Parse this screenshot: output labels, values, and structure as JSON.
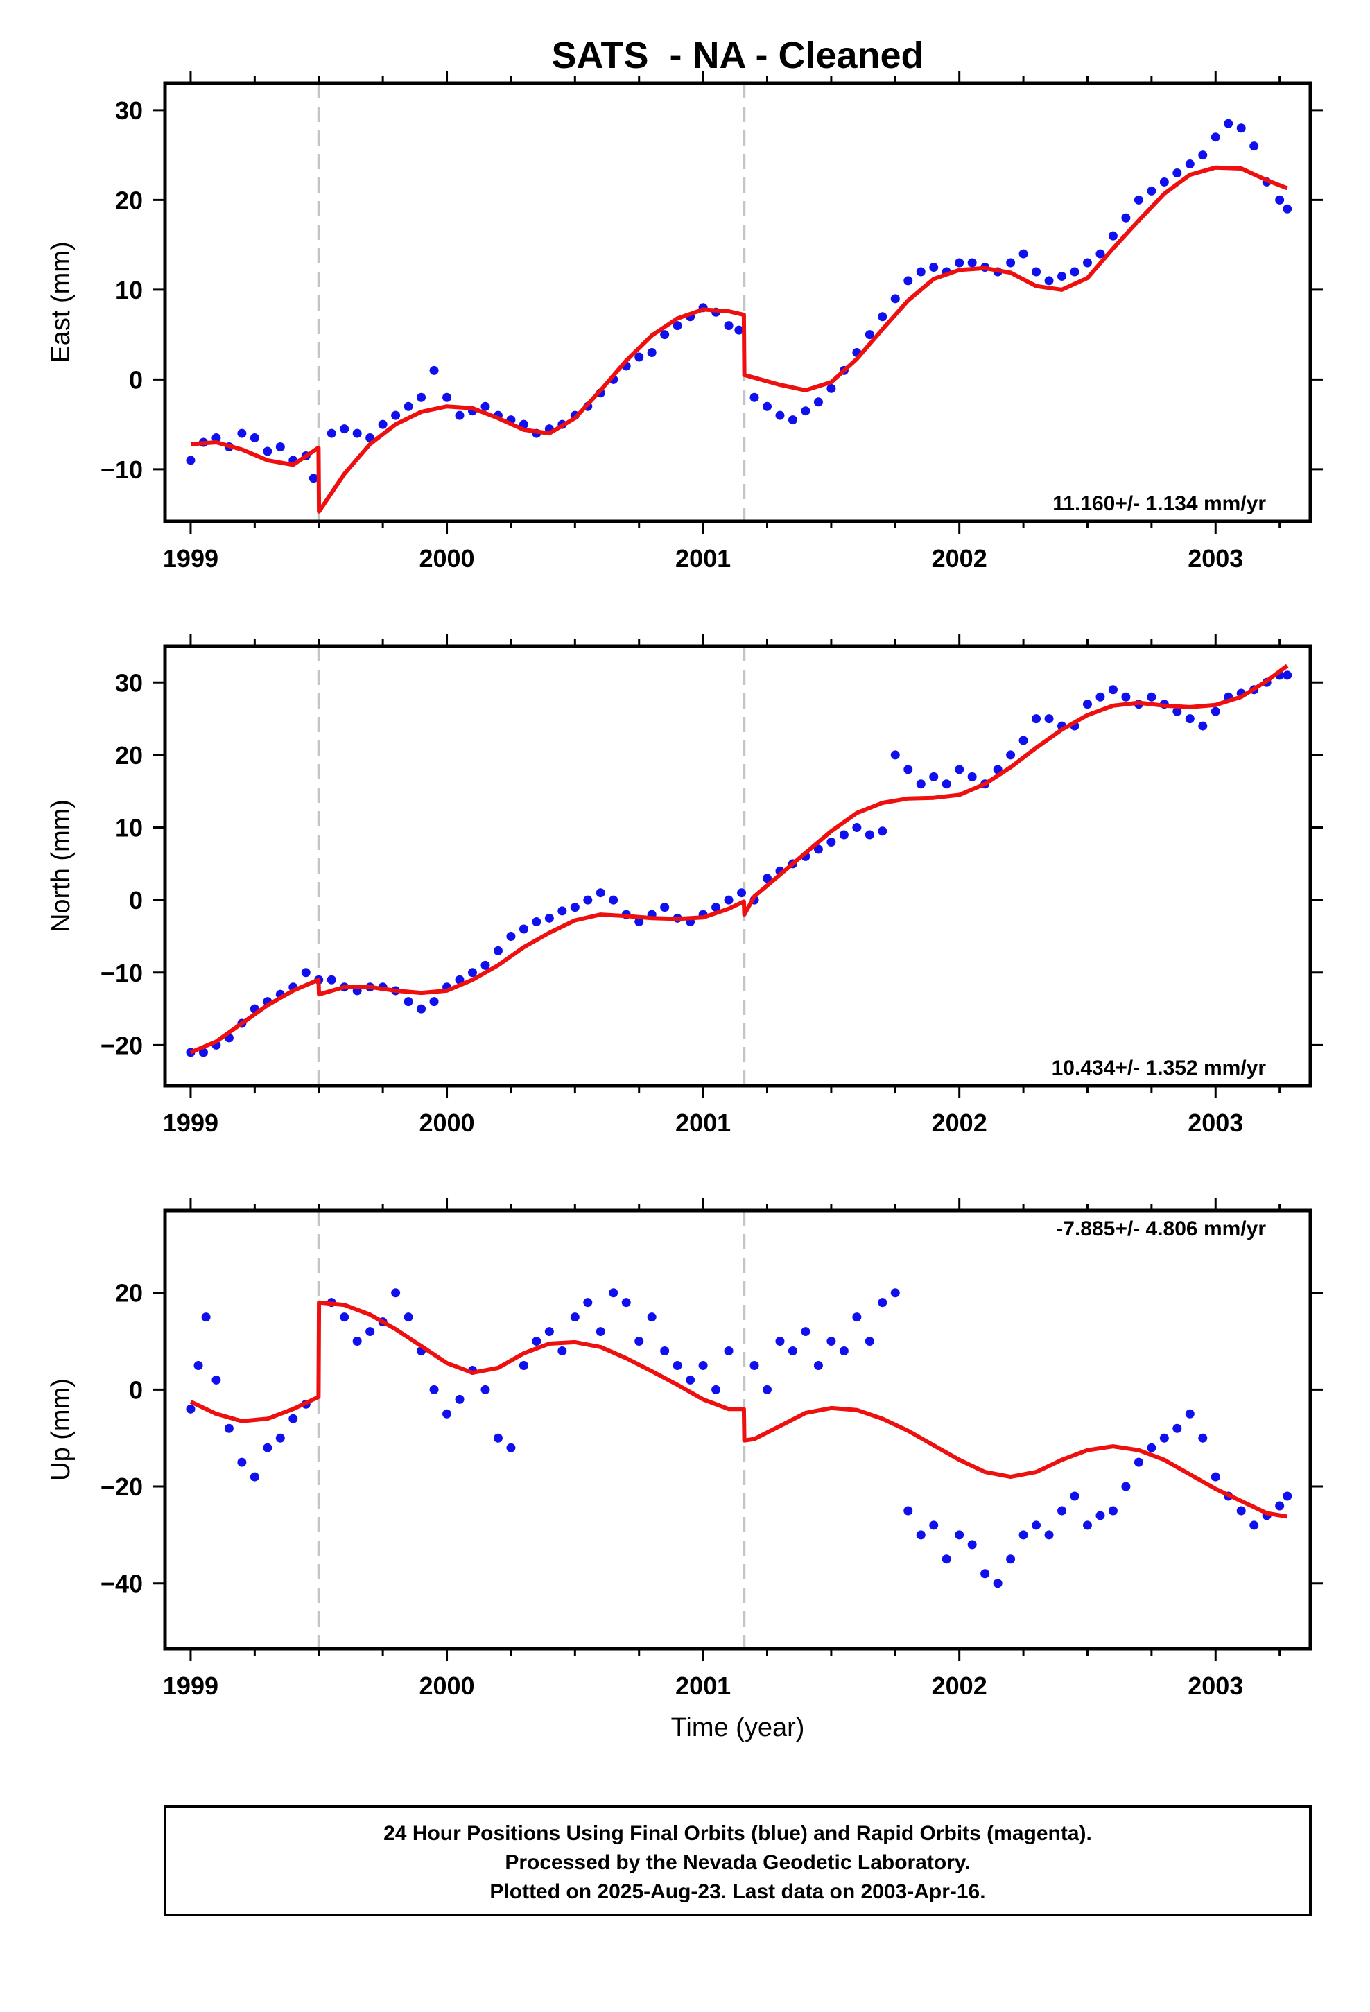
{
  "page": {
    "title": "SATS  - NA - Cleaned",
    "xlabel": "Time (year)",
    "footer": [
      "24 Hour Positions Using Final Orbits (blue) and Rapid Orbits (magenta).",
      "Processed by the Nevada Geodetic Laboratory.",
      "Plotted on 2025-Aug-23. Last data on 2003-Apr-16."
    ],
    "colors": {
      "points": "#1010ee",
      "model": "#ee0f0f",
      "offset_lines": "#c4c4c4",
      "frame": "#000000"
    }
  },
  "chart_data": [
    {
      "type": "scatter",
      "ylabel": "East (mm)",
      "rate_label": "11.160+/- 1.134 mm/yr",
      "xlim": [
        1998.9,
        2003.37
      ],
      "ylim": [
        -15.8,
        33
      ],
      "x_ticks": [
        1999,
        2000,
        2001,
        2002,
        2003
      ],
      "y_ticks": [
        -10,
        0,
        10,
        20,
        30
      ],
      "offset_epochs": [
        1999.5,
        2001.16
      ],
      "series": [
        {
          "role": "data",
          "x": [
            1999.0,
            1999.05,
            1999.1,
            1999.15,
            1999.2,
            1999.25,
            1999.3,
            1999.35,
            1999.4,
            1999.45,
            1999.48,
            1999.55,
            1999.6,
            1999.65,
            1999.7,
            1999.75,
            1999.8,
            1999.85,
            1999.9,
            1999.95,
            2000.0,
            2000.05,
            2000.1,
            2000.15,
            2000.2,
            2000.25,
            2000.3,
            2000.35,
            2000.4,
            2000.45,
            2000.5,
            2000.55,
            2000.6,
            2000.65,
            2000.7,
            2000.75,
            2000.8,
            2000.85,
            2000.9,
            2000.95,
            2001.0,
            2001.05,
            2001.1,
            2001.14,
            2001.2,
            2001.25,
            2001.3,
            2001.35,
            2001.4,
            2001.45,
            2001.5,
            2001.55,
            2001.6,
            2001.65,
            2001.7,
            2001.75,
            2001.8,
            2001.85,
            2001.9,
            2001.95,
            2002.0,
            2002.05,
            2002.1,
            2002.15,
            2002.2,
            2002.25,
            2002.3,
            2002.35,
            2002.4,
            2002.45,
            2002.5,
            2002.55,
            2002.6,
            2002.65,
            2002.7,
            2002.75,
            2002.8,
            2002.85,
            2002.9,
            2002.95,
            2003.0,
            2003.05,
            2003.1,
            2003.15,
            2003.2,
            2003.25,
            2003.28
          ],
          "y": [
            -9,
            -7,
            -6.5,
            -7.5,
            -6,
            -6.5,
            -8,
            -7.5,
            -9,
            -8.5,
            -11,
            -6,
            -5.5,
            -6,
            -6.5,
            -5,
            -4,
            -3,
            -2,
            1,
            -2,
            -4,
            -3.5,
            -3,
            -4,
            -4.5,
            -5,
            -6,
            -5.5,
            -5,
            -4,
            -3,
            -1.5,
            0,
            1.5,
            2.5,
            3,
            5,
            6,
            7,
            8,
            7.5,
            6,
            5.5,
            -2,
            -3,
            -4,
            -4.5,
            -3.5,
            -2.5,
            -1,
            1,
            3,
            5,
            7,
            9,
            11,
            12,
            12.5,
            12,
            13,
            13,
            12.5,
            12,
            13,
            14,
            12,
            11,
            11.5,
            12,
            13,
            14,
            16,
            18,
            20,
            21,
            22,
            23,
            24,
            25,
            27,
            28.5,
            28,
            26,
            22,
            20,
            19
          ]
        },
        {
          "role": "model",
          "x": [
            1999.0,
            1999.1,
            1999.2,
            1999.3,
            1999.4,
            1999.499,
            1999.501,
            1999.6,
            1999.7,
            1999.8,
            1999.9,
            2000.0,
            2000.1,
            2000.2,
            2000.3,
            2000.4,
            2000.5,
            2000.6,
            2000.7,
            2000.8,
            2000.9,
            2001.0,
            2001.1,
            2001.159,
            2001.161,
            2001.2,
            2001.3,
            2001.4,
            2001.5,
            2001.6,
            2001.7,
            2001.8,
            2001.9,
            2002.0,
            2002.1,
            2002.2,
            2002.3,
            2002.4,
            2002.5,
            2002.6,
            2002.7,
            2002.8,
            2002.9,
            2003.0,
            2003.1,
            2003.2,
            2003.28
          ],
          "y": [
            -7.2,
            -7.0,
            -7.8,
            -9.0,
            -9.5,
            -7.6,
            -14.7,
            -10.5,
            -7.2,
            -5.0,
            -3.6,
            -3.0,
            -3.2,
            -4.3,
            -5.6,
            -6.0,
            -4.3,
            -1.2,
            2.1,
            4.9,
            6.8,
            7.8,
            7.6,
            7.2,
            0.5,
            0.2,
            -0.6,
            -1.2,
            -0.3,
            2.3,
            5.6,
            8.8,
            11.2,
            12.2,
            12.4,
            11.9,
            10.4,
            10.0,
            11.3,
            14.6,
            17.7,
            20.7,
            22.8,
            23.6,
            23.5,
            22.2,
            21.3
          ]
        }
      ]
    },
    {
      "type": "scatter",
      "ylabel": "North (mm)",
      "rate_label": "10.434+/- 1.352 mm/yr",
      "xlim": [
        1998.9,
        2003.37
      ],
      "ylim": [
        -25.6,
        35
      ],
      "x_ticks": [
        1999,
        2000,
        2001,
        2002,
        2003
      ],
      "y_ticks": [
        -20,
        -10,
        0,
        10,
        20,
        30
      ],
      "offset_epochs": [
        1999.5,
        2001.16
      ],
      "series": [
        {
          "role": "data",
          "x": [
            1999.0,
            1999.05,
            1999.1,
            1999.15,
            1999.2,
            1999.25,
            1999.3,
            1999.35,
            1999.4,
            1999.45,
            1999.5,
            1999.55,
            1999.6,
            1999.65,
            1999.7,
            1999.75,
            1999.8,
            1999.85,
            1999.9,
            1999.95,
            2000.0,
            2000.05,
            2000.1,
            2000.15,
            2000.2,
            2000.25,
            2000.3,
            2000.35,
            2000.4,
            2000.45,
            2000.5,
            2000.55,
            2000.6,
            2000.65,
            2000.7,
            2000.75,
            2000.8,
            2000.85,
            2000.9,
            2000.95,
            2001.0,
            2001.05,
            2001.1,
            2001.15,
            2001.2,
            2001.25,
            2001.3,
            2001.35,
            2001.4,
            2001.45,
            2001.5,
            2001.55,
            2001.6,
            2001.65,
            2001.7,
            2001.75,
            2001.8,
            2001.85,
            2001.9,
            2001.95,
            2002.0,
            2002.05,
            2002.1,
            2002.15,
            2002.2,
            2002.25,
            2002.3,
            2002.35,
            2002.4,
            2002.45,
            2002.5,
            2002.55,
            2002.6,
            2002.65,
            2002.7,
            2002.75,
            2002.8,
            2002.85,
            2002.9,
            2002.95,
            2003.0,
            2003.05,
            2003.1,
            2003.15,
            2003.2,
            2003.25,
            2003.28
          ],
          "y": [
            -21,
            -21,
            -20,
            -19,
            -17,
            -15,
            -14,
            -13,
            -12,
            -10,
            -11,
            -11,
            -12,
            -12.5,
            -12,
            -12,
            -12.5,
            -14,
            -15,
            -14,
            -12,
            -11,
            -10,
            -9,
            -7,
            -5,
            -4,
            -3,
            -2.5,
            -1.5,
            -1,
            0,
            1,
            0,
            -2,
            -3,
            -2,
            -1,
            -2.5,
            -3,
            -2,
            -1,
            0,
            1,
            0,
            3,
            4,
            5,
            6,
            7,
            8,
            9,
            10,
            9,
            9.5,
            20,
            18,
            16,
            17,
            16,
            18,
            17,
            16,
            18,
            20,
            22,
            25,
            25,
            24,
            24,
            27,
            28,
            29,
            28,
            27,
            28,
            27,
            26,
            25,
            24,
            26,
            28,
            28.5,
            29,
            30,
            31,
            31
          ]
        },
        {
          "role": "model",
          "x": [
            1999.0,
            1999.1,
            1999.2,
            1999.3,
            1999.4,
            1999.499,
            1999.501,
            1999.6,
            1999.7,
            1999.8,
            1999.9,
            2000.0,
            2000.1,
            2000.2,
            2000.3,
            2000.4,
            2000.5,
            2000.6,
            2000.7,
            2000.8,
            2000.9,
            2001.0,
            2001.1,
            2001.159,
            2001.161,
            2001.2,
            2001.3,
            2001.4,
            2001.5,
            2001.6,
            2001.7,
            2001.8,
            2001.9,
            2002.0,
            2002.1,
            2002.2,
            2002.3,
            2002.4,
            2002.5,
            2002.6,
            2002.7,
            2002.8,
            2002.9,
            2003.0,
            2003.1,
            2003.2,
            2003.28
          ],
          "y": [
            -21,
            -19.5,
            -17,
            -14.5,
            -12.5,
            -11,
            -13,
            -12,
            -12,
            -12.5,
            -12.8,
            -12.5,
            -11,
            -9,
            -6.5,
            -4.5,
            -2.8,
            -2,
            -2.2,
            -2.5,
            -2.6,
            -2.4,
            -1.2,
            -0.2,
            -2,
            0.5,
            3.5,
            6.5,
            9.5,
            12,
            13.4,
            14,
            14.1,
            14.5,
            16,
            18.3,
            21,
            23.5,
            25.5,
            26.8,
            27.2,
            26.8,
            26.6,
            26.9,
            28,
            30.2,
            32.3
          ]
        }
      ]
    },
    {
      "type": "scatter",
      "ylabel": "Up (mm)",
      "rate_label": "-7.885+/- 4.806 mm/yr",
      "xlim": [
        1998.9,
        2003.37
      ],
      "ylim": [
        -53.5,
        37
      ],
      "x_ticks": [
        1999,
        2000,
        2001,
        2002,
        2003
      ],
      "y_ticks": [
        -40,
        -20,
        0,
        20
      ],
      "offset_epochs": [
        1999.5,
        2001.16
      ],
      "series": [
        {
          "role": "data",
          "x": [
            1999.0,
            1999.03,
            1999.06,
            1999.1,
            1999.15,
            1999.2,
            1999.25,
            1999.3,
            1999.35,
            1999.4,
            1999.45,
            1999.55,
            1999.6,
            1999.65,
            1999.7,
            1999.75,
            1999.8,
            1999.85,
            1999.9,
            1999.95,
            2000.0,
            2000.05,
            2000.1,
            2000.15,
            2000.2,
            2000.25,
            2000.3,
            2000.35,
            2000.4,
            2000.45,
            2000.5,
            2000.55,
            2000.6,
            2000.65,
            2000.7,
            2000.75,
            2000.8,
            2000.85,
            2000.9,
            2000.95,
            2001.0,
            2001.05,
            2001.1,
            2001.2,
            2001.25,
            2001.3,
            2001.35,
            2001.4,
            2001.45,
            2001.5,
            2001.55,
            2001.6,
            2001.65,
            2001.7,
            2001.75,
            2001.8,
            2001.85,
            2001.9,
            2001.95,
            2002.0,
            2002.05,
            2002.1,
            2002.15,
            2002.2,
            2002.25,
            2002.3,
            2002.35,
            2002.4,
            2002.45,
            2002.5,
            2002.55,
            2002.6,
            2002.65,
            2002.7,
            2002.75,
            2002.8,
            2002.85,
            2002.9,
            2002.95,
            2003.0,
            2003.05,
            2003.1,
            2003.15,
            2003.2,
            2003.25,
            2003.28
          ],
          "y": [
            -4,
            5,
            15,
            2,
            -8,
            -15,
            -18,
            -12,
            -10,
            -6,
            -3,
            18,
            15,
            10,
            12,
            14,
            20,
            15,
            8,
            0,
            -5,
            -2,
            4,
            0,
            -10,
            -12,
            5,
            10,
            12,
            8,
            15,
            18,
            12,
            20,
            18,
            10,
            15,
            8,
            5,
            2,
            5,
            0,
            8,
            5,
            0,
            10,
            8,
            12,
            5,
            10,
            8,
            15,
            10,
            18,
            20,
            -25,
            -30,
            -28,
            -35,
            -30,
            -32,
            -38,
            -40,
            -35,
            -30,
            -28,
            -30,
            -25,
            -22,
            -28,
            -26,
            -25,
            -20,
            -15,
            -12,
            -10,
            -8,
            -5,
            -10,
            -18,
            -22,
            -25,
            -28,
            -26,
            -24,
            -22
          ]
        },
        {
          "role": "model",
          "x": [
            1999.0,
            1999.1,
            1999.2,
            1999.3,
            1999.4,
            1999.499,
            1999.501,
            1999.6,
            1999.7,
            1999.8,
            1999.9,
            2000.0,
            2000.1,
            2000.2,
            2000.3,
            2000.4,
            2000.5,
            2000.6,
            2000.7,
            2000.8,
            2000.9,
            2001.0,
            2001.1,
            2001.159,
            2001.161,
            2001.2,
            2001.3,
            2001.4,
            2001.5,
            2001.6,
            2001.7,
            2001.8,
            2001.9,
            2002.0,
            2002.1,
            2002.2,
            2002.3,
            2002.4,
            2002.5,
            2002.6,
            2002.7,
            2002.8,
            2002.9,
            2003.0,
            2003.1,
            2003.2,
            2003.28
          ],
          "y": [
            -2.5,
            -5,
            -6.5,
            -6,
            -4,
            -1.5,
            18,
            17.5,
            15.5,
            12.5,
            9,
            5.5,
            3.5,
            4.5,
            7.5,
            9.5,
            9.8,
            8.8,
            6.5,
            3.8,
            1,
            -2,
            -4,
            -4,
            -10.5,
            -10.2,
            -7.5,
            -4.8,
            -3.8,
            -4.2,
            -6,
            -8.5,
            -11.5,
            -14.5,
            -17,
            -18,
            -17,
            -14.5,
            -12.5,
            -11.7,
            -12.5,
            -14.5,
            -17.5,
            -20.5,
            -23,
            -25.5,
            -26.2
          ]
        }
      ]
    }
  ]
}
